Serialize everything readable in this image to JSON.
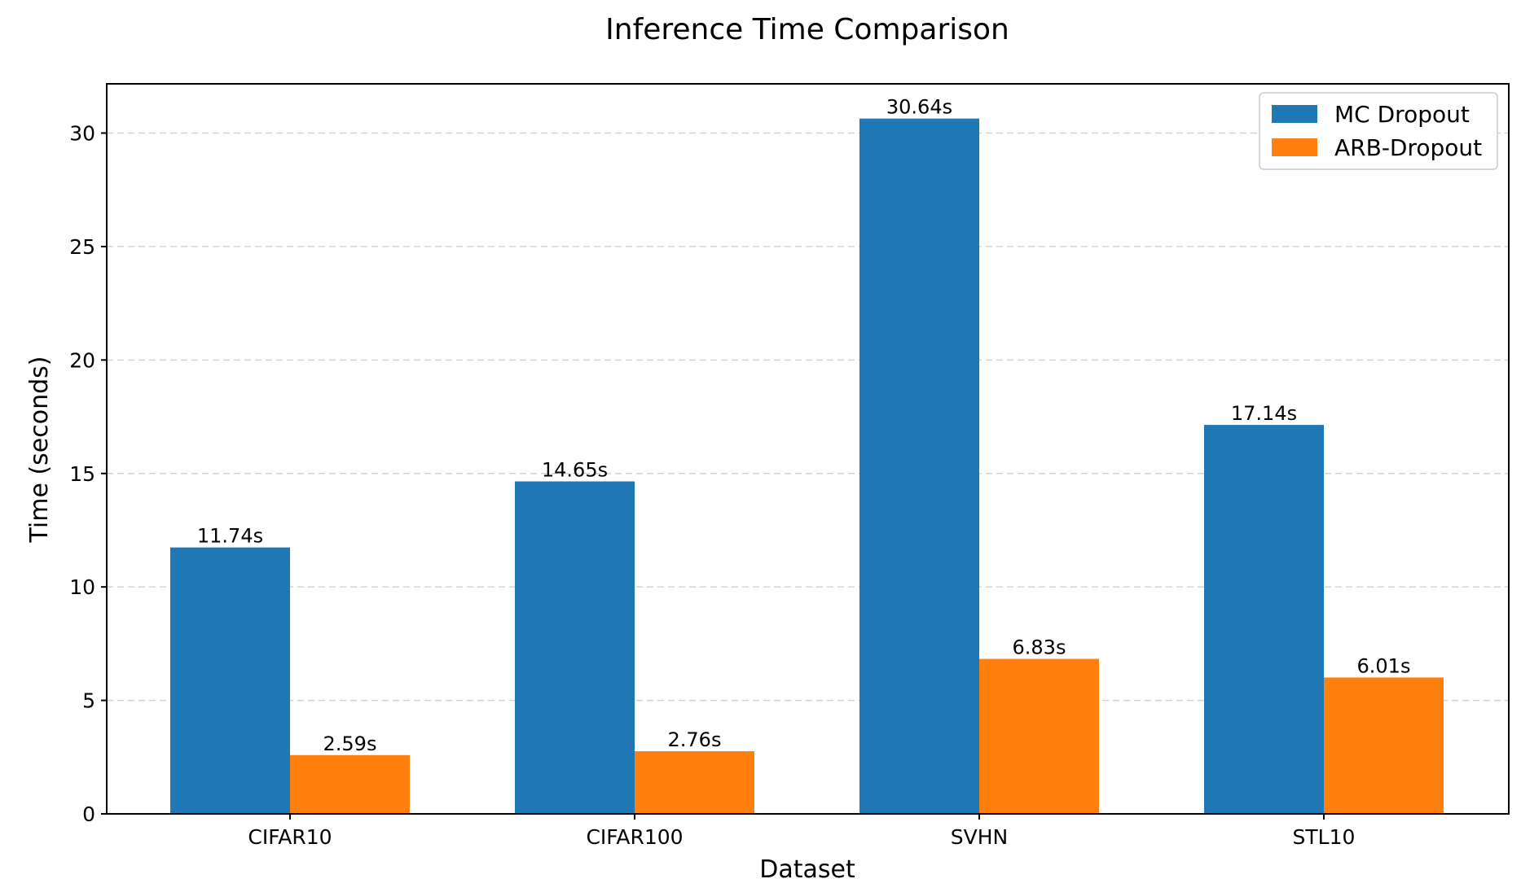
{
  "chart_data": {
    "type": "bar",
    "title": "Inference Time Comparison",
    "xlabel": "Dataset",
    "ylabel": "Time (seconds)",
    "categories": [
      "CIFAR10",
      "CIFAR100",
      "SVHN",
      "STL10"
    ],
    "series": [
      {
        "name": "MC Dropout",
        "color": "#1f77b4",
        "values": [
          11.74,
          14.65,
          30.64,
          17.14
        ],
        "labels": [
          "11.74s",
          "14.65s",
          "30.64s",
          "17.14s"
        ]
      },
      {
        "name": "ARB-Dropout",
        "color": "#ff7f0e",
        "values": [
          2.59,
          2.76,
          6.83,
          6.01
        ],
        "labels": [
          "2.59s",
          "2.76s",
          "6.83s",
          "6.01s"
        ]
      }
    ],
    "ylim": [
      0,
      32.17
    ],
    "yticks": [
      0,
      5,
      10,
      15,
      20,
      25,
      30
    ],
    "grid": "y, dashed",
    "legend_position": "top-right"
  }
}
